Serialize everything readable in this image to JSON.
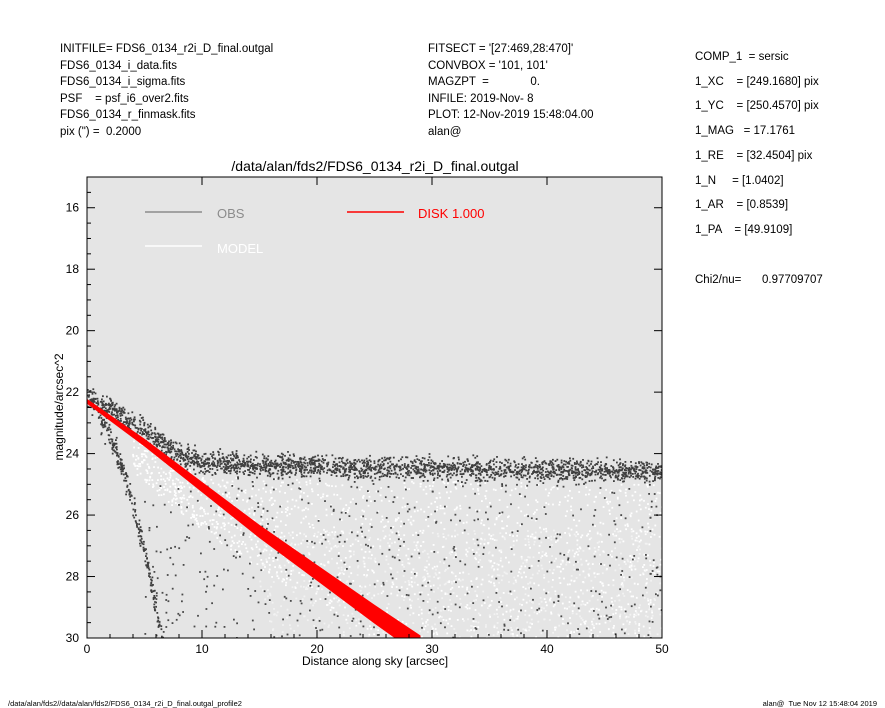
{
  "header_left": [
    "INITFILE= FDS6_0134_r2i_D_final.outgal",
    "FDS6_0134_i_data.fits",
    "FDS6_0134_i_sigma.fits",
    "PSF    = psf_i6_over2.fits",
    "FDS6_0134_r_finmask.fits",
    "pix (\") =  0.2000"
  ],
  "header_mid": [
    "FITSECT = '[27:469,28:470]'",
    "CONVBOX = '101, 101'",
    "MAGZPT  =             0.",
    "INFILE: 2019-Nov- 8",
    "PLOT: 12-Nov-2019 15:48:04.00",
    "alan@"
  ],
  "params": [
    "COMP_1  = sersic",
    "1_XC    = [249.1680] pix",
    "1_YC    = [250.4570] pix",
    "1_MAG   = 17.1761",
    "1_RE    = [32.4504] pix",
    "1_N     = [1.0402]",
    "1_AR    = [0.8539]",
    "1_PA    = [49.9109]"
  ],
  "chi2_label": "Chi2/nu=",
  "chi2_value": "0.97709707",
  "footer_left": "/data/alan/fds2//data/alan/fds2/FDS6_0134_r2i_D_final.outgal_profile2",
  "footer_right": "alan@  Tue Nov 12 15:48:04 2019",
  "chart_data": {
    "type": "scatter",
    "title": "/data/alan/fds2/FDS6_0134_r2i_D_final.outgal",
    "xlabel": "Distance along sky [arcsec]",
    "ylabel": "magnitude/arcsec^2",
    "xlim": [
      0,
      50
    ],
    "ylim": [
      30,
      15
    ],
    "y_inverted": true,
    "x_ticks": [
      0,
      10,
      20,
      30,
      40,
      50
    ],
    "y_ticks": [
      16,
      18,
      20,
      22,
      24,
      26,
      28,
      30
    ],
    "background": "#e5e5e5",
    "legend": [
      {
        "label": "OBS",
        "color": "#8c8c8c"
      },
      {
        "label": "MODEL",
        "color": "#ffffff"
      },
      {
        "label": "DISK  1.000",
        "color": "#ff0000"
      }
    ],
    "series": [
      {
        "name": "OBS",
        "color": "#444444",
        "x": [
          0.2,
          2,
          4,
          6,
          8,
          10,
          15,
          20,
          30,
          40,
          50
        ],
        "y": [
          22.3,
          22.5,
          23.0,
          23.5,
          24.0,
          24.3,
          24.4,
          24.45,
          24.5,
          24.55,
          24.6
        ]
      },
      {
        "name": "MODEL",
        "color": "#ffffff",
        "x": [
          0,
          5,
          10,
          20,
          30,
          40,
          50
        ],
        "y": [
          22.4,
          23.5,
          25.0,
          27.5,
          29.5,
          30.0,
          30.0
        ]
      },
      {
        "name": "DISK  1.000",
        "color": "#ff0000",
        "x": [
          0,
          5,
          10,
          15,
          20,
          25,
          29
        ],
        "y": [
          22.3,
          23.6,
          25.0,
          26.4,
          27.7,
          29.0,
          30.0
        ]
      }
    ]
  }
}
